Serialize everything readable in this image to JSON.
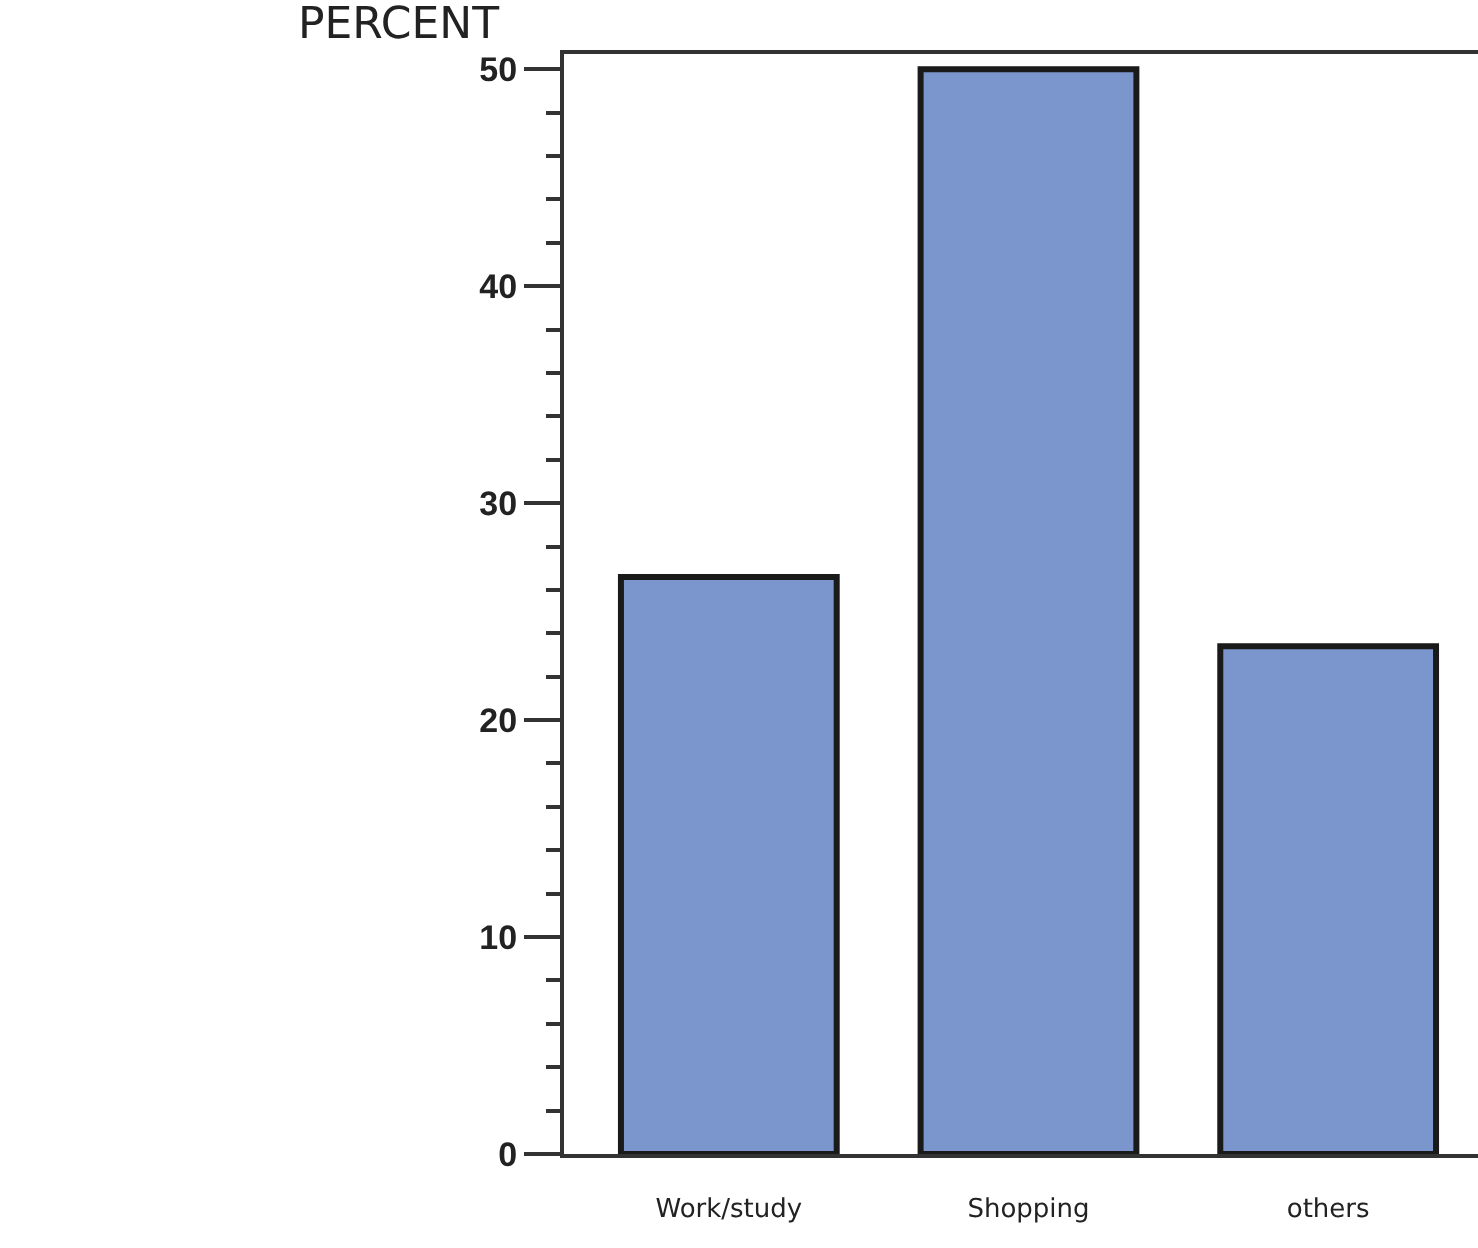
{
  "chart_data": {
    "type": "bar",
    "ylabel": "PERCENT",
    "categories": [
      "Work/study",
      "Shopping",
      "others"
    ],
    "values": [
      26.6,
      50,
      23.4
    ],
    "color": "#7b96cc",
    "ylim": [
      0,
      50.7
    ],
    "yticks": [
      0,
      10,
      20,
      30,
      40,
      50
    ],
    "grid": false
  }
}
